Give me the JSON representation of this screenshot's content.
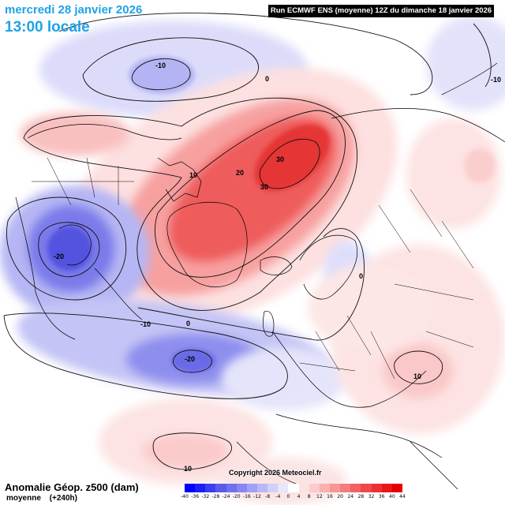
{
  "header": {
    "date_line": "mercredi 28 janvier 2026",
    "time_line": "13:00 locale",
    "run_info": "Run ECMWF ENS (moyenne) 12Z du dimanche 18 janvier 2026"
  },
  "footer": {
    "title": "Anomalie Géop. z500 (dam)",
    "subtitle_left": "moyenne",
    "subtitle_right": "(+240h)",
    "copyright": "Copyright 2026 Meteociel.fr"
  },
  "colors": {
    "date_text": "#1fa3e6",
    "positive_anomaly": "#e8383d",
    "negative_anomaly": "#5a5ae6",
    "run_box_bg": "#000000"
  },
  "scale": {
    "labels": [
      "-40",
      "-36",
      "-32",
      "-28",
      "-24",
      "-20",
      "-16",
      "-12",
      "-8",
      "-4",
      "0",
      "4",
      "8",
      "12",
      "16",
      "20",
      "24",
      "28",
      "32",
      "36",
      "40",
      "44"
    ],
    "colors": [
      "#0000ff",
      "#1e1ef6",
      "#3c3cf0",
      "#5a5aea",
      "#7070ee",
      "#8686f2",
      "#a0a0f6",
      "#b8b8f8",
      "#d0d0fa",
      "#e6e6fc",
      "#ffffff",
      "#fde2e2",
      "#fbcaca",
      "#f9b0b0",
      "#f79696",
      "#f47c7c",
      "#f26262",
      "#ef4848",
      "#ec3030",
      "#e81818",
      "#e40000"
    ]
  },
  "contours": {
    "labels": [
      {
        "text": "-10",
        "where": "north-pacific-low"
      },
      {
        "text": "0",
        "where": "arctic"
      },
      {
        "text": "10",
        "where": "canadian-arctic"
      },
      {
        "text": "20",
        "where": "baffin"
      },
      {
        "text": "30",
        "where": "arctic-ocean-high"
      },
      {
        "text": "30",
        "where": "greenland-north"
      },
      {
        "text": "-20",
        "where": "hudson-bay-low"
      },
      {
        "text": "-10",
        "where": "north-atlantic"
      },
      {
        "text": "0",
        "where": "north-atlantic-2"
      },
      {
        "text": "-20",
        "where": "atlantic-low"
      },
      {
        "text": "0",
        "where": "scandinavia"
      },
      {
        "text": "10",
        "where": "asia"
      },
      {
        "text": "10",
        "where": "pacific-bottom"
      },
      {
        "text": "-10",
        "where": "north-pacific-right"
      }
    ]
  }
}
